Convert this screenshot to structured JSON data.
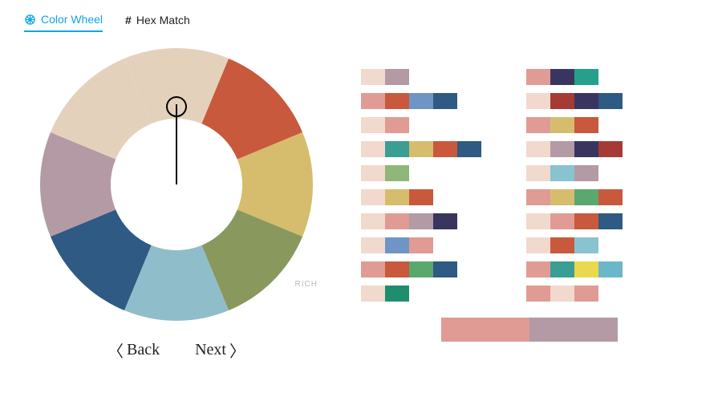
{
  "tabs": {
    "color_wheel": {
      "label": "Color Wheel",
      "active": true
    },
    "hex_match": {
      "label": "Hex Match",
      "active": false
    }
  },
  "wheel": {
    "outer_radius": 170,
    "inner_radius": 82,
    "center_fill": "#ffffff",
    "segments": [
      {
        "start": -112.5,
        "end": -67.5,
        "color": "#e4d1bc"
      },
      {
        "start": -67.5,
        "end": -22.5,
        "color": "#c8593c"
      },
      {
        "start": -22.5,
        "end": 22.5,
        "color": "#d6bd6d"
      },
      {
        "start": 22.5,
        "end": 67.5,
        "color": "#89985d"
      },
      {
        "start": 67.5,
        "end": 112.5,
        "color": "#90bdca"
      },
      {
        "start": 112.5,
        "end": 157.5,
        "color": "#2e5a83"
      },
      {
        "start": 157.5,
        "end": 202.5,
        "color": "#b39aa5"
      },
      {
        "start": 202.5,
        "end": 247.5,
        "color": "#e4d1bc"
      }
    ],
    "handle_angle_deg": 0,
    "rich_label": "RICH"
  },
  "nav": {
    "back": "Back",
    "next": "Next"
  },
  "swatch_unit_width": 30,
  "palettes_left": [
    [
      {
        "c": "#f2d9cd",
        "w": 1
      },
      {
        "c": "#b39aa5",
        "w": 1
      }
    ],
    [
      {
        "c": "#e09b94",
        "w": 1
      },
      {
        "c": "#c8593c",
        "w": 1
      },
      {
        "c": "#6f95c7",
        "w": 1
      },
      {
        "c": "#2e5a83",
        "w": 1
      }
    ],
    [
      {
        "c": "#f2d9cd",
        "w": 1
      },
      {
        "c": "#e09b94",
        "w": 1
      }
    ],
    [
      {
        "c": "#f2d9cd",
        "w": 1
      },
      {
        "c": "#3a9e93",
        "w": 1
      },
      {
        "c": "#d6bd6d",
        "w": 1
      },
      {
        "c": "#c8593c",
        "w": 1
      },
      {
        "c": "#2e5a83",
        "w": 1
      }
    ],
    [
      {
        "c": "#f2d9cd",
        "w": 1
      },
      {
        "c": "#8fb779",
        "w": 1
      }
    ],
    [
      {
        "c": "#f2d9cd",
        "w": 1
      },
      {
        "c": "#d6bd6d",
        "w": 1
      },
      {
        "c": "#c8593c",
        "w": 1
      }
    ],
    [
      {
        "c": "#f2d9cd",
        "w": 1
      },
      {
        "c": "#e09b94",
        "w": 1
      },
      {
        "c": "#b39aa5",
        "w": 1
      },
      {
        "c": "#3a3560",
        "w": 1
      }
    ],
    [
      {
        "c": "#f2d9cd",
        "w": 1
      },
      {
        "c": "#6f95c7",
        "w": 1
      },
      {
        "c": "#e09b94",
        "w": 1
      }
    ],
    [
      {
        "c": "#e09b94",
        "w": 1
      },
      {
        "c": "#c8593c",
        "w": 1
      },
      {
        "c": "#5aa86e",
        "w": 1
      },
      {
        "c": "#2e5a83",
        "w": 1
      }
    ],
    [
      {
        "c": "#f2d9cd",
        "w": 1
      },
      {
        "c": "#1f8d6e",
        "w": 1
      }
    ]
  ],
  "palettes_right": [
    [
      {
        "c": "#e09b94",
        "w": 1
      },
      {
        "c": "#3a3560",
        "w": 1
      },
      {
        "c": "#26a08a",
        "w": 1
      }
    ],
    [
      {
        "c": "#f2d9cd",
        "w": 1
      },
      {
        "c": "#a53b34",
        "w": 1
      },
      {
        "c": "#3a3560",
        "w": 1
      },
      {
        "c": "#2e5a83",
        "w": 1
      }
    ],
    [
      {
        "c": "#e09b94",
        "w": 1
      },
      {
        "c": "#d6bd6d",
        "w": 1
      },
      {
        "c": "#c8593c",
        "w": 1
      }
    ],
    [
      {
        "c": "#f2d9cd",
        "w": 1
      },
      {
        "c": "#b39aa5",
        "w": 1
      },
      {
        "c": "#3a3560",
        "w": 1
      },
      {
        "c": "#a53b34",
        "w": 1
      }
    ],
    [
      {
        "c": "#f2d9cd",
        "w": 1
      },
      {
        "c": "#88c3cf",
        "w": 1
      },
      {
        "c": "#b39aa5",
        "w": 1
      }
    ],
    [
      {
        "c": "#e09b94",
        "w": 1
      },
      {
        "c": "#d6bd6d",
        "w": 1
      },
      {
        "c": "#5aa86e",
        "w": 1
      },
      {
        "c": "#c8593c",
        "w": 1
      }
    ],
    [
      {
        "c": "#f2d9cd",
        "w": 1
      },
      {
        "c": "#e09b94",
        "w": 1
      },
      {
        "c": "#c8593c",
        "w": 1
      },
      {
        "c": "#2e5a83",
        "w": 1
      }
    ],
    [
      {
        "c": "#f2d9cd",
        "w": 1
      },
      {
        "c": "#c8593c",
        "w": 1
      },
      {
        "c": "#88c3cf",
        "w": 1
      }
    ],
    [
      {
        "c": "#e09b94",
        "w": 1
      },
      {
        "c": "#3a9e93",
        "w": 1
      },
      {
        "c": "#ead94f",
        "w": 1
      },
      {
        "c": "#6bb7c7",
        "w": 1
      }
    ],
    [
      {
        "c": "#e09b94",
        "w": 1
      },
      {
        "c": "#f2d9cd",
        "w": 1
      },
      {
        "c": "#e09b94",
        "w": 1
      }
    ]
  ],
  "palette_bottom": [
    {
      "c": "#e09b94",
      "w": 110
    },
    {
      "c": "#b39aa5",
      "w": 110
    }
  ],
  "colors": {
    "active_tab": "#0ea5e9",
    "text": "#222222",
    "muted": "#b9b9b2",
    "background": "#ffffff"
  },
  "typography": {
    "tab_fontsize": 14,
    "nav_fontsize": 20,
    "rich_fontsize": 10
  }
}
